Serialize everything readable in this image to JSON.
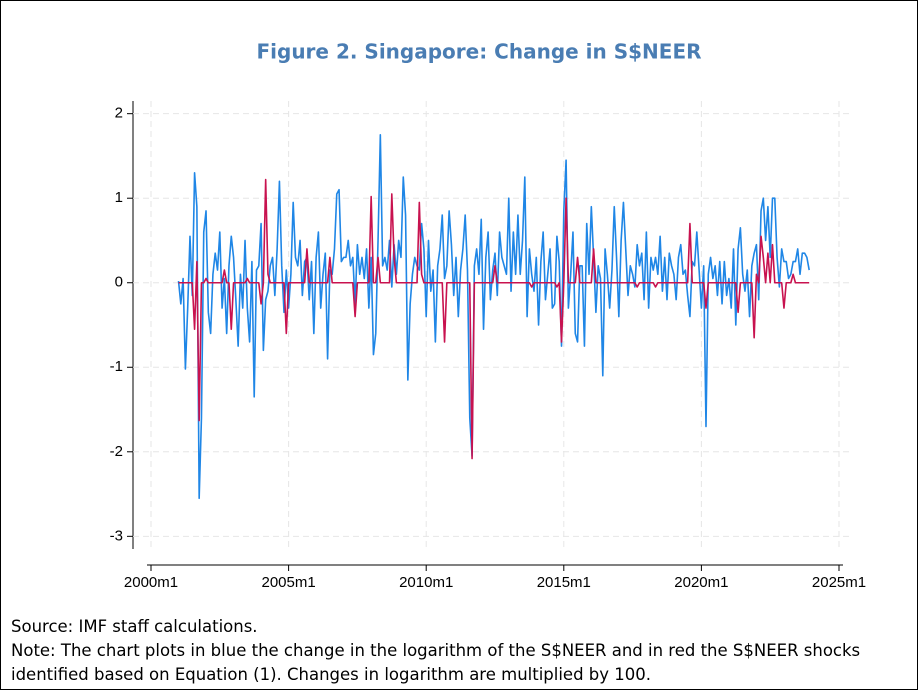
{
  "chart_data": {
    "type": "line",
    "title": "Figure 2. Singapore: Change in S$NEER",
    "source": "Source: IMF staff calculations.",
    "note": "Note: The chart plots in blue the change in the logarithm of the S$NEER and in red the S$NEER shocks identified based on Equation (1). Changes in logarithm are multiplied by 100.",
    "x": [
      "2001m1",
      "2001m2",
      "2001m3",
      "2001m4",
      "2001m5",
      "2001m6",
      "2001m7",
      "2001m8",
      "2001m9",
      "2001m10",
      "2001m11",
      "2001m12",
      "2002m1",
      "2002m2",
      "2002m3",
      "2002m4",
      "2002m5",
      "2002m6",
      "2002m7",
      "2002m8",
      "2002m9",
      "2002m10",
      "2002m11",
      "2002m12",
      "2003m1",
      "2003m2",
      "2003m3",
      "2003m4",
      "2003m5",
      "2003m6",
      "2003m7",
      "2003m8",
      "2003m9",
      "2003m10",
      "2003m11",
      "2003m12",
      "2004m1",
      "2004m2",
      "2004m3",
      "2004m4",
      "2004m5",
      "2004m6",
      "2004m7",
      "2004m8",
      "2004m9",
      "2004m10",
      "2004m11",
      "2004m12",
      "2005m1",
      "2005m2",
      "2005m3",
      "2005m4",
      "2005m5",
      "2005m6",
      "2005m7",
      "2005m8",
      "2005m9",
      "2005m10",
      "2005m11",
      "2005m12",
      "2006m1",
      "2006m2",
      "2006m3",
      "2006m4",
      "2006m5",
      "2006m6",
      "2006m7",
      "2006m8",
      "2006m9",
      "2006m10",
      "2006m11",
      "2006m12",
      "2007m1",
      "2007m2",
      "2007m3",
      "2007m4",
      "2007m5",
      "2007m6",
      "2007m7",
      "2007m8",
      "2007m9",
      "2007m10",
      "2007m11",
      "2007m12",
      "2008m1",
      "2008m2",
      "2008m3",
      "2008m4",
      "2008m5",
      "2008m6",
      "2008m7",
      "2008m8",
      "2008m9",
      "2008m10",
      "2008m11",
      "2008m12",
      "2009m1",
      "2009m2",
      "2009m3",
      "2009m4",
      "2009m5",
      "2009m6",
      "2009m7",
      "2009m8",
      "2009m9",
      "2009m10",
      "2009m11",
      "2009m12",
      "2010m1",
      "2010m2",
      "2010m3",
      "2010m4",
      "2010m5",
      "2010m6",
      "2010m7",
      "2010m8",
      "2010m9",
      "2010m10",
      "2010m11",
      "2010m12",
      "2011m1",
      "2011m2",
      "2011m3",
      "2011m4",
      "2011m5",
      "2011m6",
      "2011m7",
      "2011m8",
      "2011m9",
      "2011m10",
      "2011m11",
      "2011m12",
      "2012m1",
      "2012m2",
      "2012m3",
      "2012m4",
      "2012m5",
      "2012m6",
      "2012m7",
      "2012m8",
      "2012m9",
      "2012m10",
      "2012m11",
      "2012m12",
      "2013m1",
      "2013m2",
      "2013m3",
      "2013m4",
      "2013m5",
      "2013m6",
      "2013m7",
      "2013m8",
      "2013m9",
      "2013m10",
      "2013m11",
      "2013m12",
      "2014m1",
      "2014m2",
      "2014m3",
      "2014m4",
      "2014m5",
      "2014m6",
      "2014m7",
      "2014m8",
      "2014m9",
      "2014m10",
      "2014m11",
      "2014m12",
      "2015m1",
      "2015m2",
      "2015m3",
      "2015m4",
      "2015m5",
      "2015m6",
      "2015m7",
      "2015m8",
      "2015m9",
      "2015m10",
      "2015m11",
      "2015m12",
      "2016m1",
      "2016m2",
      "2016m3",
      "2016m4",
      "2016m5",
      "2016m6",
      "2016m7",
      "2016m8",
      "2016m9",
      "2016m10",
      "2016m11",
      "2016m12",
      "2017m1",
      "2017m2",
      "2017m3",
      "2017m4",
      "2017m5",
      "2017m6",
      "2017m7",
      "2017m8",
      "2017m9",
      "2017m10",
      "2017m11",
      "2017m12",
      "2018m1",
      "2018m2",
      "2018m3",
      "2018m4",
      "2018m5",
      "2018m6",
      "2018m7",
      "2018m8",
      "2018m9",
      "2018m10",
      "2018m11",
      "2018m12",
      "2019m1",
      "2019m2",
      "2019m3",
      "2019m4",
      "2019m5",
      "2019m6",
      "2019m7",
      "2019m8",
      "2019m9",
      "2019m10",
      "2019m11",
      "2019m12",
      "2020m1",
      "2020m2",
      "2020m3",
      "2020m4",
      "2020m5",
      "2020m6",
      "2020m7",
      "2020m8",
      "2020m9",
      "2020m10",
      "2020m11",
      "2020m12",
      "2021m1",
      "2021m2",
      "2021m3",
      "2021m4",
      "2021m5",
      "2021m6",
      "2021m7",
      "2021m8",
      "2021m9",
      "2021m10",
      "2021m11",
      "2021m12",
      "2022m1",
      "2022m2",
      "2022m3",
      "2022m4",
      "2022m5",
      "2022m6",
      "2022m7",
      "2022m8",
      "2022m9",
      "2022m10",
      "2022m11",
      "2022m12",
      "2023m1",
      "2023m2",
      "2023m3",
      "2023m4",
      "2023m5",
      "2023m6",
      "2023m7",
      "2023m8",
      "2023m9",
      "2023m10",
      "2023m11",
      "2023m12"
    ],
    "series": [
      {
        "color": "#1f86e6",
        "values": [
          0.02,
          -0.25,
          0.05,
          -1.02,
          -0.3,
          0.55,
          -0.15,
          1.3,
          0.9,
          -2.55,
          -1.6,
          0.6,
          0.85,
          -0.35,
          -0.6,
          0.1,
          0.35,
          0.15,
          0.6,
          -0.3,
          0.05,
          -0.6,
          0.2,
          0.55,
          0.3,
          -0.2,
          -0.75,
          0.1,
          -0.3,
          0.5,
          -0.3,
          -0.7,
          0.25,
          -1.35,
          0.15,
          0.2,
          0.7,
          -0.8,
          -0.2,
          -0.1,
          0.2,
          0.3,
          -0.15,
          0.4,
          1.2,
          0.2,
          -0.35,
          0.15,
          -0.3,
          0.1,
          0.95,
          0.3,
          0.2,
          0.5,
          -0.15,
          0.25,
          0.3,
          -0.2,
          0.25,
          -0.6,
          0.3,
          0.6,
          -0.3,
          0.1,
          0.35,
          -0.9,
          0.15,
          0.1,
          0.4,
          1.05,
          1.1,
          0.25,
          0.3,
          0.3,
          0.5,
          0.2,
          0.3,
          -0.25,
          0.45,
          0.1,
          0.3,
          0.05,
          0.4,
          -0.3,
          0.3,
          -0.85,
          -0.6,
          0.5,
          1.75,
          0.2,
          0.3,
          0.15,
          0.5,
          -0.05,
          0.45,
          0.1,
          0.5,
          0.3,
          1.25,
          0.8,
          -1.15,
          -0.25,
          0.1,
          0.3,
          0.2,
          0.15,
          0.7,
          0.4,
          -0.4,
          0.5,
          -0.1,
          0.15,
          -0.7,
          0.2,
          0.4,
          0.8,
          0.05,
          0.2,
          0.85,
          0.45,
          -0.15,
          0.3,
          -0.4,
          0.15,
          0.4,
          0.8,
          0.15,
          -1.6,
          -2.05,
          0.2,
          0.4,
          0.1,
          0.75,
          -0.55,
          0.3,
          0.6,
          -0.2,
          0.15,
          0.35,
          -0.15,
          0.6,
          0.3,
          0.2,
          0.1,
          1.0,
          -0.1,
          0.6,
          0.1,
          0.8,
          0.1,
          0.5,
          1.25,
          -0.4,
          0.4,
          0.1,
          -0.1,
          0.3,
          -0.5,
          0.25,
          0.6,
          -0.2,
          0.1,
          0.4,
          -0.3,
          -0.25,
          0.55,
          0.25,
          -0.75,
          0.85,
          1.45,
          -0.3,
          0.1,
          0.6,
          -0.6,
          -0.7,
          0.2,
          0.2,
          -0.75,
          0.7,
          0.1,
          0.9,
          0.3,
          -0.35,
          0.2,
          0.05,
          -1.1,
          0.4,
          0.1,
          -0.3,
          0.15,
          0.9,
          0.3,
          -0.4,
          0.5,
          0.95,
          0.4,
          -0.15,
          0.2,
          0.1,
          -0.05,
          0.45,
          0.2,
          0.35,
          -0.2,
          0.6,
          -0.3,
          0.3,
          0.15,
          0.3,
          0.1,
          0.55,
          -0.1,
          0.3,
          -0.2,
          0.35,
          0.2,
          0.1,
          -0.2,
          0.3,
          0.45,
          0.1,
          0.15,
          -0.15,
          -0.4,
          0.25,
          0.2,
          0.6,
          0.15,
          -0.3,
          0.2,
          -1.7,
          0.1,
          0.3,
          0.05,
          0.2,
          -0.15,
          0.25,
          -0.25,
          0.25,
          -0.15,
          0.05,
          -0.3,
          0.4,
          -0.5,
          0.4,
          0.65,
          0.1,
          -0.1,
          0.15,
          -0.4,
          0.2,
          0.35,
          0.45,
          -0.2,
          0.85,
          1.0,
          0.5,
          0.9,
          0.3,
          1.0,
          1.0,
          0.3,
          -0.05,
          0.4,
          0.25,
          0.25,
          0.05,
          0.1,
          0.25,
          0.25,
          0.4,
          0.1,
          0.35,
          0.35,
          0.3,
          0.15
        ]
      },
      {
        "color": "#c8124f",
        "values": [
          0,
          0,
          0,
          0,
          0,
          0,
          0,
          -0.55,
          0.25,
          -1.63,
          0,
          0,
          0.05,
          0,
          0,
          0,
          0,
          0,
          0,
          0,
          0.15,
          0,
          0,
          -0.55,
          0,
          0,
          0,
          0,
          0,
          0,
          0.05,
          0,
          0,
          0,
          0,
          0,
          -0.25,
          0,
          1.22,
          0.1,
          0,
          0,
          0,
          0,
          0,
          0,
          0,
          -0.6,
          0,
          0,
          0,
          0,
          0,
          0,
          0,
          0,
          0.4,
          0,
          0,
          0,
          0,
          0,
          0,
          0,
          0,
          0,
          0.3,
          0,
          0,
          0,
          0,
          0,
          0,
          0,
          0,
          0,
          0,
          -0.4,
          0,
          0,
          0,
          0,
          0,
          0,
          1.02,
          0,
          0,
          0.3,
          0,
          0,
          0,
          0,
          0,
          1.05,
          0.3,
          0,
          0,
          0,
          0,
          0,
          0,
          0,
          0,
          0,
          0,
          0.95,
          0.1,
          0,
          0,
          0,
          0,
          0,
          0,
          0,
          0,
          0,
          -0.7,
          0,
          0,
          0,
          0,
          0,
          0,
          0,
          0,
          0,
          0,
          0,
          -2.08,
          0,
          0,
          0,
          0,
          0,
          0,
          0,
          0,
          0,
          0.2,
          0,
          0,
          0,
          0,
          0,
          0,
          0,
          0,
          0,
          0,
          0,
          0,
          0,
          0,
          0,
          -0.05,
          0,
          0,
          0,
          0,
          0,
          0,
          0,
          0,
          0,
          0,
          -0.05,
          0,
          -0.7,
          0,
          1.0,
          0,
          0,
          0,
          0,
          0.3,
          0,
          0,
          0,
          0,
          0,
          0,
          0.4,
          0,
          0,
          0,
          0,
          0,
          0,
          0,
          0,
          0,
          0,
          0,
          0,
          0,
          0,
          0,
          0,
          0,
          0,
          -0.05,
          0,
          0,
          0,
          0,
          0,
          0,
          0,
          -0.05,
          0,
          0,
          0,
          0,
          0,
          0,
          0,
          0,
          0,
          0,
          0,
          0,
          0,
          0,
          0.7,
          0,
          0,
          0,
          0,
          0,
          0,
          -0.3,
          0,
          0,
          0,
          0,
          0,
          0,
          0,
          0,
          0,
          0,
          0,
          0,
          0,
          -0.35,
          0,
          0,
          0,
          0,
          0,
          0,
          -0.65,
          0.1,
          0,
          0.55,
          0.3,
          0,
          0.35,
          0,
          0.45,
          0,
          0,
          0,
          0,
          -0.3,
          0,
          0,
          0,
          0.1,
          0,
          0,
          0,
          0,
          0,
          0,
          0
        ]
      }
    ],
    "xlim": [
      "2000m1",
      "2025m1"
    ],
    "xticks": [
      "2000m1",
      "2005m1",
      "2010m1",
      "2015m1",
      "2020m1",
      "2025m1"
    ],
    "ylim": [
      -3.15,
      2.15
    ],
    "yticks": [
      -3,
      -2,
      -1,
      0,
      1,
      2
    ],
    "grid": true
  }
}
